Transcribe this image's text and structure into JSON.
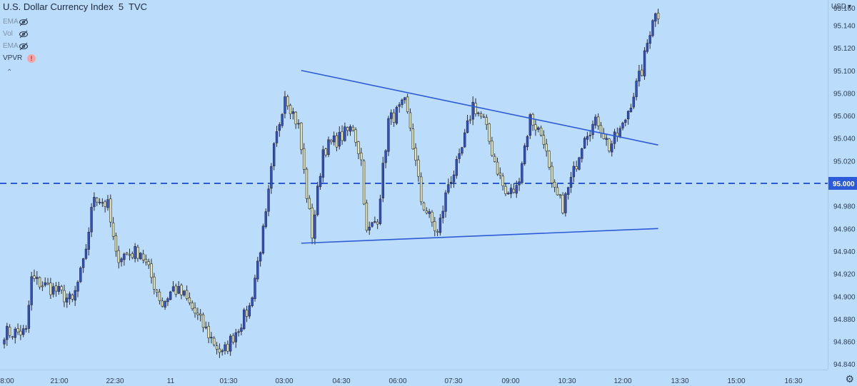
{
  "legend": {
    "title": "U.S. Dollar Currency Index  5  TVC",
    "indicators": [
      {
        "label": "EMA",
        "state": "hidden"
      },
      {
        "label": "Vol",
        "state": "hidden"
      },
      {
        "label": "EMA",
        "state": "hidden"
      },
      {
        "label": "VPVR",
        "state": "error",
        "badge": "!"
      }
    ],
    "collapse_symbol": "⌃"
  },
  "currency_label": "USD",
  "colors": {
    "background": "#bcdcfb",
    "bull_candle": "#2e4fd6",
    "bear_candle": "#e9e6a8",
    "wick": "#2c2c2c",
    "trendline": "#2c5bd7",
    "level_line": "#2c5bd7",
    "price_tag_bg": "#2c5bd7",
    "axis_text": "#2d3d52"
  },
  "chart_data": {
    "type": "candlestick",
    "title": "U.S. Dollar Currency Index  5  TVC",
    "x_ticks": [
      "8:00",
      "21:00",
      "22:30",
      "11",
      "01:30",
      "03:00",
      "04:30",
      "06:00",
      "07:30",
      "09:00",
      "10:30",
      "12:00",
      "13:30",
      "15:00",
      "16:30"
    ],
    "y_ticks": [
      "95.140",
      "95.120",
      "95.100",
      "95.080",
      "95.060",
      "95.040",
      "95.020",
      "94.980",
      "94.960",
      "94.940",
      "94.920",
      "94.900",
      "94.880",
      "94.860",
      "94.840"
    ],
    "y_range": [
      94.833,
      95.16
    ],
    "y_partial_top_label": "95.160",
    "horizontal_level": {
      "value": 95.0,
      "label": "95.000",
      "style": "dashed"
    },
    "trendlines": [
      {
        "name": "upper",
        "start": {
          "bar": 109,
          "price": 95.1
        },
        "end": {
          "bar": 240,
          "price": 95.034
        }
      },
      {
        "name": "lower",
        "start": {
          "bar": 109,
          "price": 94.947
        },
        "end": {
          "bar": 240,
          "price": 94.96
        }
      }
    ],
    "segments": [
      [
        0,
        94.868
      ],
      [
        8,
        94.868
      ],
      [
        10,
        94.915
      ],
      [
        19,
        94.905
      ],
      [
        25,
        94.895
      ],
      [
        29,
        94.928
      ],
      [
        33,
        94.99
      ],
      [
        38,
        94.98
      ],
      [
        41,
        94.935
      ],
      [
        50,
        94.94
      ],
      [
        58,
        94.893
      ],
      [
        62,
        94.907
      ],
      [
        66,
        94.9
      ],
      [
        74,
        94.87
      ],
      [
        80,
        94.848
      ],
      [
        90,
        94.89
      ],
      [
        96,
        94.97
      ],
      [
        99,
        95.03
      ],
      [
        103,
        95.08
      ],
      [
        108,
        95.05
      ],
      [
        111,
        94.99
      ],
      [
        113,
        94.955
      ],
      [
        117,
        95.03
      ],
      [
        123,
        95.04
      ],
      [
        128,
        95.05
      ],
      [
        131,
        95.02
      ],
      [
        133,
        94.955
      ],
      [
        137,
        94.97
      ],
      [
        141,
        95.055
      ],
      [
        147,
        95.07
      ],
      [
        149,
        95.05
      ],
      [
        153,
        94.985
      ],
      [
        159,
        94.955
      ],
      [
        163,
        95.0
      ],
      [
        167,
        95.02
      ],
      [
        172,
        95.07
      ],
      [
        176,
        95.055
      ],
      [
        180,
        95.02
      ],
      [
        184,
        94.99
      ],
      [
        188,
        94.995
      ],
      [
        193,
        95.058
      ],
      [
        198,
        95.04
      ],
      [
        201,
        94.995
      ],
      [
        205,
        94.98
      ],
      [
        209,
        95.01
      ],
      [
        213,
        95.045
      ],
      [
        218,
        95.055
      ],
      [
        222,
        95.032
      ],
      [
        227,
        95.05
      ],
      [
        231,
        95.08
      ],
      [
        234,
        95.1
      ],
      [
        238,
        95.148
      ],
      [
        240,
        95.15
      ]
    ]
  }
}
